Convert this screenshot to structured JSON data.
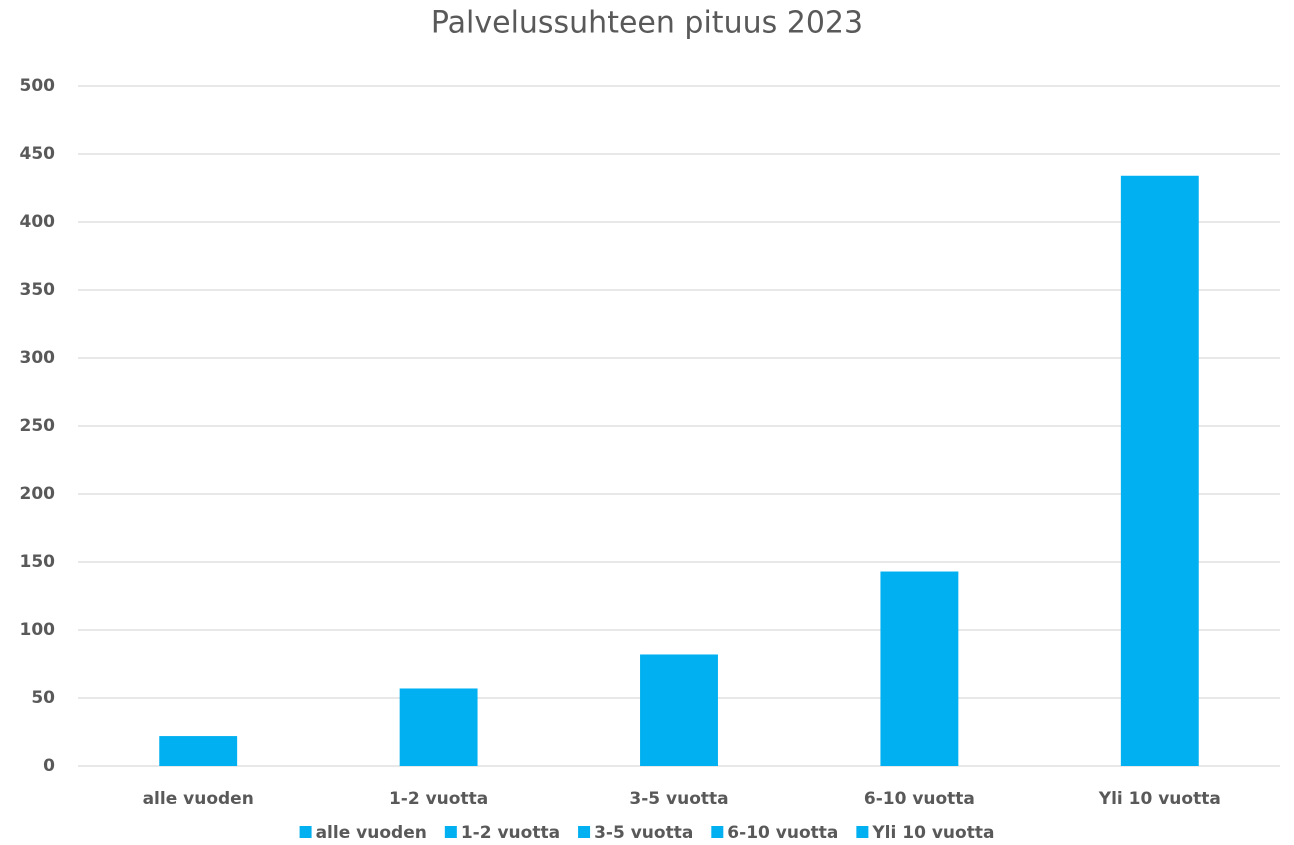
{
  "chart_data": {
    "type": "bar",
    "title": "Palvelussuhteen pituus 2023",
    "categories": [
      "alle vuoden",
      "1-2 vuotta",
      "3-5 vuotta",
      "6-10 vuotta",
      "Yli 10 vuotta"
    ],
    "values": [
      22,
      57,
      82,
      143,
      434
    ],
    "color": "#00b0f0",
    "ylim": [
      0,
      500
    ],
    "yticks": [
      0,
      50,
      100,
      150,
      200,
      250,
      300,
      350,
      400,
      450,
      500
    ],
    "grid": true,
    "legend": "bottom"
  }
}
